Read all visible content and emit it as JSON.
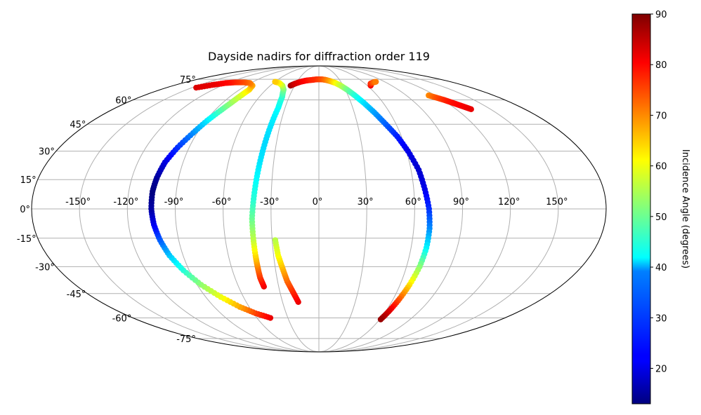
{
  "chart_data": {
    "type": "scatter",
    "projection": "mollweide",
    "title": "Dayside nadirs for diffraction order 119",
    "x_tick_labels": [
      "-150°",
      "-120°",
      "-90°",
      "-60°",
      "-30°",
      "0°",
      "30°",
      "60°",
      "90°",
      "120°",
      "150°"
    ],
    "x_ticks": [
      -150,
      -120,
      -90,
      -60,
      -30,
      0,
      30,
      60,
      90,
      120,
      150
    ],
    "y_tick_labels": [
      "-75°",
      "-60°",
      "-45°",
      "-30°",
      "-15°",
      "0°",
      "15°",
      "30°",
      "45°",
      "60°",
      "75°"
    ],
    "y_ticks": [
      -75,
      -60,
      -45,
      -30,
      -15,
      0,
      15,
      30,
      45,
      60,
      75
    ],
    "grid": true,
    "colormap": "jet",
    "colorbar": {
      "label": "Incidence Angle (degrees)",
      "min": 13,
      "max": 90,
      "ticks": [
        20,
        30,
        40,
        50,
        60,
        70,
        80,
        90
      ],
      "tick_labels": [
        "20",
        "30",
        "40",
        "50",
        "60",
        "70",
        "80",
        "90"
      ]
    },
    "series": [
      {
        "points": [
          {
            "lon": -47,
            "lat": -60,
            "inc": 82
          },
          {
            "lon": -58,
            "lat": -57,
            "inc": 76
          },
          {
            "lon": -68,
            "lat": -53,
            "inc": 68
          },
          {
            "lon": -78,
            "lat": -47,
            "inc": 60
          },
          {
            "lon": -87,
            "lat": -40,
            "inc": 53
          },
          {
            "lon": -94,
            "lat": -32,
            "inc": 45
          },
          {
            "lon": -99,
            "lat": -24,
            "inc": 38
          },
          {
            "lon": -102,
            "lat": -16,
            "inc": 30
          },
          {
            "lon": -104,
            "lat": -8,
            "inc": 22
          },
          {
            "lon": -105,
            "lat": 0,
            "inc": 16
          },
          {
            "lon": -105,
            "lat": 9,
            "inc": 13
          },
          {
            "lon": -104,
            "lat": 16,
            "inc": 15
          },
          {
            "lon": -102,
            "lat": 24,
            "inc": 20
          },
          {
            "lon": -98,
            "lat": 32,
            "inc": 26
          },
          {
            "lon": -93,
            "lat": 40,
            "inc": 33
          },
          {
            "lon": -89,
            "lat": 47,
            "inc": 40
          },
          {
            "lon": -85,
            "lat": 53,
            "inc": 47
          },
          {
            "lon": -82,
            "lat": 58,
            "inc": 53
          },
          {
            "lon": -80,
            "lat": 63,
            "inc": 58
          },
          {
            "lon": -79,
            "lat": 67,
            "inc": 63
          },
          {
            "lon": -82,
            "lat": 70,
            "inc": 67
          },
          {
            "lon": -91,
            "lat": 72,
            "inc": 71
          },
          {
            "lon": -101,
            "lat": 72.5,
            "inc": 74
          },
          {
            "lon": -112,
            "lat": 72.5,
            "inc": 77
          },
          {
            "lon": -123,
            "lat": 72,
            "inc": 80
          },
          {
            "lon": -134,
            "lat": 70.5,
            "inc": 82
          },
          {
            "lon": -145,
            "lat": 68.5,
            "inc": 83
          }
        ]
      },
      {
        "points": [
          {
            "lon": -41,
            "lat": -41,
            "inc": 82
          },
          {
            "lon": -42,
            "lat": -36,
            "inc": 77
          },
          {
            "lon": -42,
            "lat": -30,
            "inc": 71
          },
          {
            "lon": -42,
            "lat": -24,
            "inc": 64
          },
          {
            "lon": -42,
            "lat": -15,
            "inc": 56
          },
          {
            "lon": -42,
            "lat": -5,
            "inc": 50
          },
          {
            "lon": -41,
            "lat": 5,
            "inc": 45
          },
          {
            "lon": -40,
            "lat": 15,
            "inc": 42
          },
          {
            "lon": -39,
            "lat": 25,
            "inc": 40
          },
          {
            "lon": -38,
            "lat": 35,
            "inc": 39
          },
          {
            "lon": -37,
            "lat": 45,
            "inc": 40
          },
          {
            "lon": -36,
            "lat": 55,
            "inc": 42
          },
          {
            "lon": -37,
            "lat": 62,
            "inc": 45
          },
          {
            "lon": -40,
            "lat": 67,
            "inc": 50
          },
          {
            "lon": -45,
            "lat": 70,
            "inc": 55
          },
          {
            "lon": -52,
            "lat": 72,
            "inc": 60
          },
          {
            "lon": -60,
            "lat": 73,
            "inc": 65
          }
        ]
      },
      {
        "points": [
          {
            "lon": -17,
            "lat": -50,
            "inc": 82
          },
          {
            "lon": -20,
            "lat": -44,
            "inc": 78
          },
          {
            "lon": -23,
            "lat": -38,
            "inc": 73
          },
          {
            "lon": -25,
            "lat": -31,
            "inc": 67
          },
          {
            "lon": -27,
            "lat": -24,
            "inc": 61
          },
          {
            "lon": -28,
            "lat": -16,
            "inc": 56
          }
        ]
      },
      {
        "points": [
          {
            "lon": -35,
            "lat": 70,
            "inc": 88
          },
          {
            "lon": -31,
            "lat": 71.5,
            "inc": 84
          },
          {
            "lon": -25,
            "lat": 73,
            "inc": 82
          },
          {
            "lon": -18,
            "lat": 74,
            "inc": 80
          },
          {
            "lon": -10,
            "lat": 74.5,
            "inc": 78
          },
          {
            "lon": -3,
            "lat": 75,
            "inc": 77
          },
          {
            "lon": 4,
            "lat": 75,
            "inc": 75
          },
          {
            "lon": 10,
            "lat": 74.5,
            "inc": 72
          },
          {
            "lon": 16,
            "lat": 73.5,
            "inc": 68
          },
          {
            "lon": 22,
            "lat": 72,
            "inc": 62
          },
          {
            "lon": 27,
            "lat": 70,
            "inc": 57
          },
          {
            "lon": 32,
            "lat": 67,
            "inc": 51
          },
          {
            "lon": 37,
            "lat": 63,
            "inc": 45
          },
          {
            "lon": 42,
            "lat": 58,
            "inc": 40
          },
          {
            "lon": 47,
            "lat": 52,
            "inc": 35
          },
          {
            "lon": 52,
            "lat": 45,
            "inc": 30
          },
          {
            "lon": 57,
            "lat": 38,
            "inc": 25
          },
          {
            "lon": 61,
            "lat": 30,
            "inc": 21
          },
          {
            "lon": 65,
            "lat": 20,
            "inc": 19
          },
          {
            "lon": 67,
            "lat": 10,
            "inc": 21
          },
          {
            "lon": 69,
            "lat": 0,
            "inc": 26
          },
          {
            "lon": 70,
            "lat": -10,
            "inc": 33
          },
          {
            "lon": 70,
            "lat": -20,
            "inc": 41
          },
          {
            "lon": 69,
            "lat": -30,
            "inc": 52
          },
          {
            "lon": 67,
            "lat": -40,
            "inc": 63
          },
          {
            "lon": 65,
            "lat": -48,
            "inc": 73
          },
          {
            "lon": 63,
            "lat": -55,
            "inc": 82
          },
          {
            "lon": 61,
            "lat": -61,
            "inc": 88
          }
        ]
      },
      {
        "points": [
          {
            "lon": 64,
            "lat": 70,
            "inc": 82
          },
          {
            "lon": 67,
            "lat": 71.5,
            "inc": 78
          },
          {
            "lon": 73,
            "lat": 72.5,
            "inc": 74
          },
          {
            "lon": 78,
            "lat": 73,
            "inc": 71
          }
        ]
      },
      {
        "points": [
          {
            "lon": 113,
            "lat": 63,
            "inc": 70
          },
          {
            "lon": 117,
            "lat": 61.5,
            "inc": 74
          },
          {
            "lon": 121,
            "lat": 60,
            "inc": 77
          },
          {
            "lon": 124,
            "lat": 58.5,
            "inc": 79
          },
          {
            "lon": 127,
            "lat": 57,
            "inc": 80
          },
          {
            "lon": 130,
            "lat": 55.5,
            "inc": 81
          },
          {
            "lon": 133,
            "lat": 54,
            "inc": 82
          }
        ]
      }
    ]
  }
}
